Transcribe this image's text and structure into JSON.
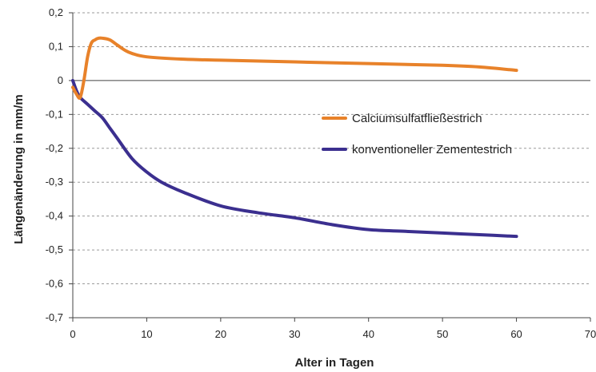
{
  "chart_data": {
    "type": "line",
    "title": "",
    "xlabel": "Alter in Tagen",
    "ylabel": "Längenänderung in mm/m",
    "xlim": [
      0,
      70
    ],
    "ylim": [
      -0.7,
      0.2
    ],
    "x_ticks": [
      0,
      10,
      20,
      30,
      40,
      50,
      60,
      70
    ],
    "x_tick_labels": [
      "0",
      "10",
      "20",
      "30",
      "40",
      "50",
      "60",
      "70"
    ],
    "y_ticks": [
      0.2,
      0.1,
      0,
      -0.1,
      -0.2,
      -0.3,
      -0.4,
      -0.5,
      -0.6,
      -0.7
    ],
    "y_tick_labels": [
      "0,2",
      "0,1",
      "0",
      "-0,1",
      "-0,2",
      "-0,3",
      "-0,4",
      "-0,5",
      "-0,6",
      "-0,7"
    ],
    "grid": "horizontal dashed",
    "legend_position": "right-middle",
    "series": [
      {
        "name": "Calciumsulfatfließestrich",
        "color": "#e8822a",
        "x": [
          0,
          0.5,
          1,
          1.5,
          2,
          2.5,
          3,
          3.5,
          4,
          5,
          6,
          7,
          8,
          10,
          15,
          20,
          30,
          40,
          50,
          55,
          60
        ],
        "y": [
          -0.02,
          -0.04,
          -0.05,
          0.0,
          0.07,
          0.11,
          0.12,
          0.125,
          0.125,
          0.12,
          0.105,
          0.09,
          0.08,
          0.07,
          0.063,
          0.06,
          0.055,
          0.05,
          0.045,
          0.04,
          0.03
        ]
      },
      {
        "name": "konventioneller Zementestrich",
        "color": "#3b2f8f",
        "x": [
          0,
          0.5,
          1,
          2,
          3,
          4,
          5,
          6,
          8,
          10,
          12,
          15,
          20,
          25,
          30,
          35,
          40,
          45,
          50,
          55,
          60
        ],
        "y": [
          0.0,
          -0.03,
          -0.05,
          -0.07,
          -0.09,
          -0.11,
          -0.14,
          -0.17,
          -0.23,
          -0.27,
          -0.3,
          -0.33,
          -0.37,
          -0.39,
          -0.405,
          -0.425,
          -0.44,
          -0.445,
          -0.45,
          -0.455,
          -0.46
        ]
      }
    ]
  }
}
